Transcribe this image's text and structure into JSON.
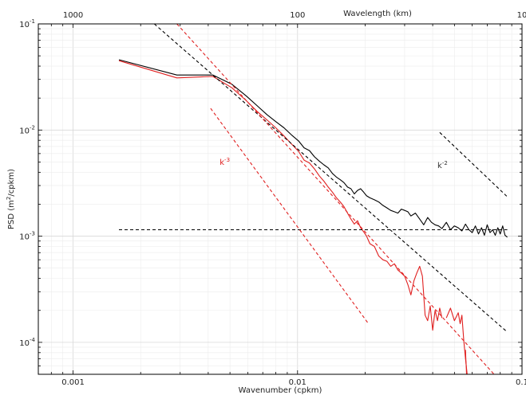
{
  "chart_data": {
    "type": "line",
    "xscale": "log",
    "yscale": "log",
    "xlim": [
      0.0007,
      0.1
    ],
    "ylim": [
      5e-05,
      0.1
    ],
    "grid": true,
    "xlabel": "Wavenumber (cpkm)",
    "ylabel": "PSD (m",
    "ylabel_sup": "2",
    "ylabel_tail": "/cpkm)",
    "x2label": "Wavelength (km)",
    "xticks": [
      {
        "value": 0.001,
        "label": "0.001"
      },
      {
        "value": 0.01,
        "label": "0.01"
      },
      {
        "value": 0.1,
        "label": "0.1"
      }
    ],
    "x2ticks": [
      {
        "value": 0.001,
        "label": "1000"
      },
      {
        "value": 0.01,
        "label": "100"
      },
      {
        "value": 0.1,
        "label": "10"
      }
    ],
    "yticks": [
      {
        "value": 0.1,
        "base": "10",
        "exp": "-1"
      },
      {
        "value": 0.01,
        "base": "10",
        "exp": "-2"
      },
      {
        "value": 0.001,
        "base": "10",
        "exp": "-3"
      },
      {
        "value": 0.0001,
        "base": "10",
        "exp": "-4"
      }
    ],
    "series": [
      {
        "color": "#000000",
        "dash": "solid",
        "x": [
          0.0016,
          0.0029,
          0.0042,
          0.0051,
          0.0059,
          0.0066,
          0.0073,
          0.008,
          0.0087,
          0.0094,
          0.0101,
          0.0107,
          0.0113,
          0.0119,
          0.0125,
          0.0131,
          0.0137,
          0.0143,
          0.0149,
          0.0155,
          0.0161,
          0.0167,
          0.0173,
          0.0179,
          0.0185,
          0.0191,
          0.0197,
          0.0203,
          0.021,
          0.022,
          0.023,
          0.024,
          0.025,
          0.026,
          0.027,
          0.028,
          0.029,
          0.03,
          0.031,
          0.032,
          0.0335,
          0.035,
          0.0365,
          0.038,
          0.0395,
          0.041,
          0.0425,
          0.044,
          0.046,
          0.048,
          0.05,
          0.052,
          0.054,
          0.056,
          0.058,
          0.06,
          0.062,
          0.064,
          0.066,
          0.068,
          0.07,
          0.072,
          0.074,
          0.076,
          0.078,
          0.08,
          0.082,
          0.084,
          0.086
        ],
        "y": [
          0.046,
          0.033,
          0.033,
          0.027,
          0.021,
          0.017,
          0.014,
          0.012,
          0.0105,
          0.009,
          0.0079,
          0.0068,
          0.0064,
          0.0056,
          0.0051,
          0.0047,
          0.0044,
          0.0039,
          0.0036,
          0.0034,
          0.0032,
          0.0029,
          0.0028,
          0.0025,
          0.0027,
          0.0028,
          0.0026,
          0.0024,
          0.0023,
          0.0022,
          0.0021,
          0.00195,
          0.00185,
          0.00175,
          0.0017,
          0.00165,
          0.0018,
          0.00175,
          0.0017,
          0.00155,
          0.00165,
          0.00145,
          0.00128,
          0.0015,
          0.00135,
          0.00128,
          0.00125,
          0.00118,
          0.00135,
          0.00115,
          0.00125,
          0.0012,
          0.00112,
          0.0013,
          0.00115,
          0.00108,
          0.00125,
          0.00105,
          0.0012,
          0.00102,
          0.00128,
          0.00108,
          0.00115,
          0.00102,
          0.0012,
          0.00105,
          0.00125,
          0.00102,
          0.00098
        ]
      },
      {
        "color": "#e02020",
        "dash": "solid",
        "x": [
          0.0016,
          0.0029,
          0.0042,
          0.0051,
          0.0059,
          0.0066,
          0.0073,
          0.008,
          0.0087,
          0.0094,
          0.0101,
          0.0107,
          0.0113,
          0.0119,
          0.0125,
          0.0131,
          0.0137,
          0.0143,
          0.0149,
          0.0155,
          0.0161,
          0.0167,
          0.0173,
          0.0179,
          0.0185,
          0.0191,
          0.0197,
          0.0203,
          0.021,
          0.022,
          0.023,
          0.024,
          0.025,
          0.026,
          0.027,
          0.028,
          0.029,
          0.03,
          0.031,
          0.032,
          0.033,
          0.034,
          0.035,
          0.036,
          0.037,
          0.038,
          0.039,
          0.04,
          0.041,
          0.042,
          0.043,
          0.044
        ],
        "y": [
          0.045,
          0.031,
          0.032,
          0.025,
          0.019,
          0.015,
          0.0125,
          0.0105,
          0.0088,
          0.0074,
          0.0063,
          0.0052,
          0.0049,
          0.0043,
          0.0037,
          0.0033,
          0.0029,
          0.0026,
          0.0023,
          0.0021,
          0.0019,
          0.00165,
          0.00145,
          0.0013,
          0.0014,
          0.0012,
          0.0011,
          0.001,
          0.00085,
          0.0008,
          0.00065,
          0.0006,
          0.00058,
          0.00052,
          0.00055,
          0.00048,
          0.00045,
          0.00042,
          0.00035,
          0.00028,
          0.00038,
          0.00045,
          0.00052,
          0.00042,
          0.00018,
          0.00016,
          0.00022,
          0.00013,
          0.0002,
          0.00016,
          0.00021,
          0.00017
        ]
      },
      {
        "color": "#e02020",
        "dash": "solid",
        "x": [
          0.046,
          0.048,
          0.05,
          0.052,
          0.053,
          0.054,
          0.055,
          0.056,
          0.057,
          0.058,
          0.059
        ],
        "y": [
          0.00017,
          0.00021,
          0.00016,
          0.00019,
          0.00015,
          0.00018,
          0.000105,
          7e-05,
          5e-05,
          5e-05,
          5e-05
        ]
      },
      {
        "color": "#e02020",
        "dash": "solid",
        "x": [
          0.056,
          0.0562,
          0.0564,
          0.0566
        ],
        "y": [
          8.5e-05,
          7e-05,
          6e-05,
          5e-05
        ]
      },
      {
        "color": "#000000",
        "dash": "dashed",
        "x": [
          0.0016,
          0.086
        ],
        "y": [
          0.00115,
          0.00115
        ]
      },
      {
        "color": "#000000",
        "dash": "dashed",
        "x": [
          0.0023,
          0.086
        ],
        "y": [
          0.1,
          0.000125
        ]
      },
      {
        "color": "#e02020",
        "dash": "dashed",
        "x": [
          0.0029,
          0.088
        ],
        "y": [
          0.1,
          3.45e-05
        ]
      },
      {
        "color": "#e02020",
        "dash": "dashed",
        "x": [
          0.0041,
          0.0205
        ],
        "y": [
          0.016,
          0.000154
        ]
      },
      {
        "color": "#000000",
        "dash": "dashed",
        "x": [
          0.043,
          0.086
        ],
        "y": [
          0.0095,
          0.00235
        ]
      }
    ],
    "annotations": [
      {
        "x": 0.0045,
        "y": 0.0047,
        "base": "k",
        "exp": "-3",
        "color": "#e02020"
      },
      {
        "x": 0.042,
        "y": 0.0044,
        "base": "k",
        "exp": "-2",
        "color": "#333333"
      }
    ]
  }
}
